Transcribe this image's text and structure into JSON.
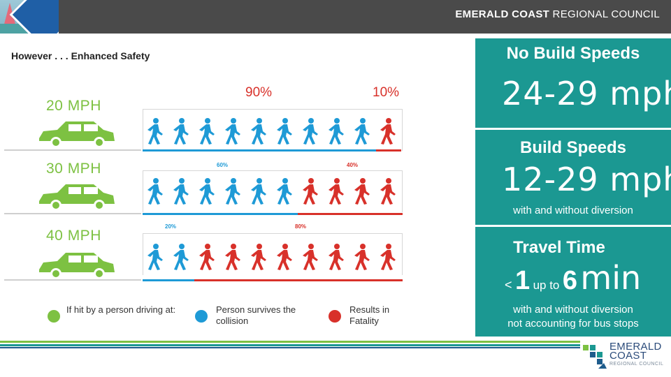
{
  "header": {
    "brand_bold": "EMERALD COAST",
    "brand_rest": " REGIONAL COUNCIL"
  },
  "title": "However . . . Enhanced Safety",
  "percent_headers": {
    "survive": "90%",
    "fatal": "10%"
  },
  "rows": [
    {
      "speed": "20 MPH",
      "survive_pct": "",
      "fatal_pct": "",
      "survive_count": 9,
      "fatal_count": 1
    },
    {
      "speed": "30 MPH",
      "survive_pct": "60%",
      "fatal_pct": "40%",
      "survive_count": 6,
      "fatal_count": 4
    },
    {
      "speed": "40 MPH",
      "survive_pct": "20%",
      "fatal_pct": "80%",
      "survive_count": 2,
      "fatal_count": 8
    }
  ],
  "legend": {
    "driving": "If hit by a person driving at:",
    "survives": "Person survives the collision",
    "fatality": "Results in Fatality"
  },
  "panel": {
    "no_build_title": "No Build Speeds",
    "no_build_value": "24-29 mph",
    "build_title": "Build Speeds",
    "build_value": "12-29 mph",
    "build_note": "with and without diversion",
    "travel_title": "Travel Time",
    "travel_lt": "<",
    "travel_low": "1",
    "travel_up_to": "up to",
    "travel_high": "6",
    "travel_unit": "min",
    "travel_note_1": "with and without diversion",
    "travel_note_2": "not accounting for bus stops"
  },
  "logo": {
    "line1": "EMERALD",
    "line2": "COAST",
    "line3": "REGIONAL COUNCIL"
  },
  "colors": {
    "green": "#7dc142",
    "blue": "#1e9ad6",
    "red": "#d8312a",
    "teal": "#1b9892"
  }
}
